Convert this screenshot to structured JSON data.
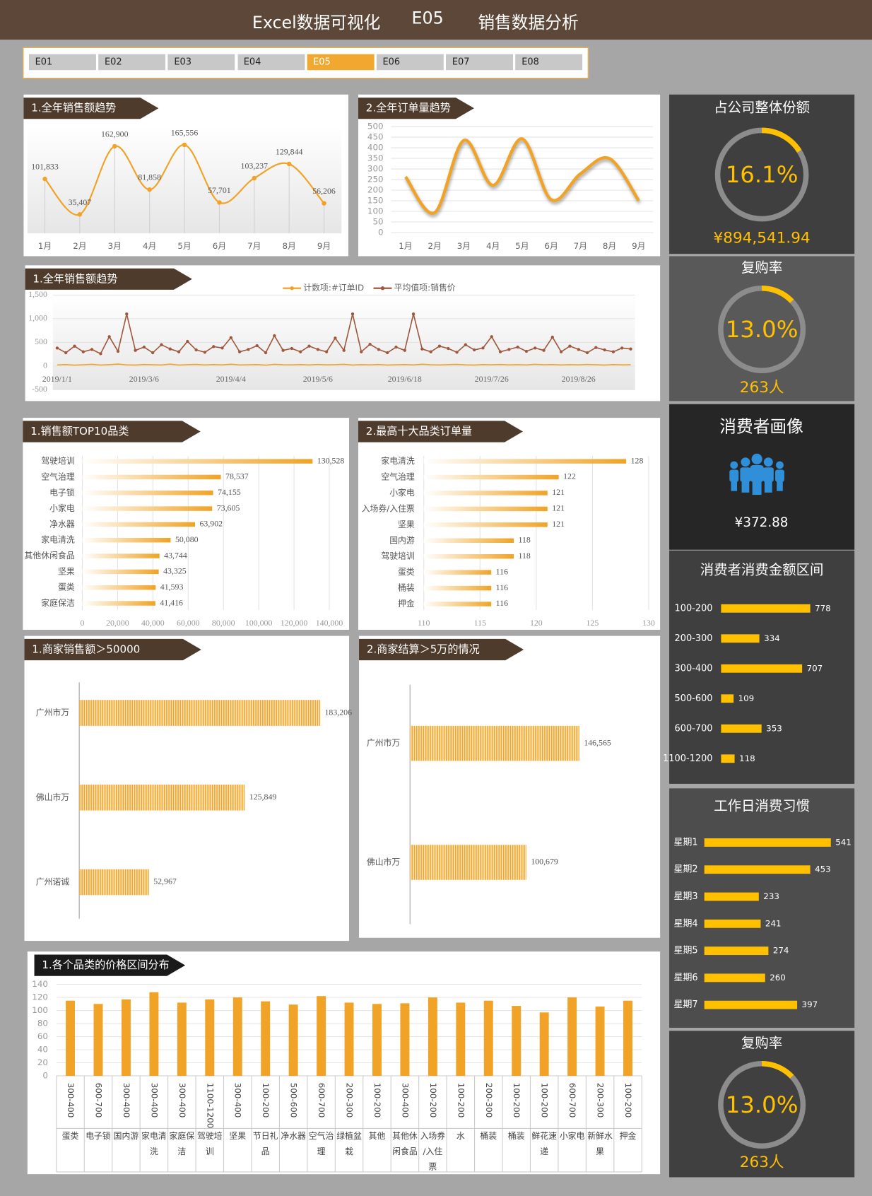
{
  "header": {
    "title": "Excel数据可视化",
    "code": "E05",
    "subtitle": "销售数据分析"
  },
  "tabs": [
    {
      "label": "E01",
      "active": false
    },
    {
      "label": "E02",
      "active": false
    },
    {
      "label": "E03",
      "active": false
    },
    {
      "label": "E04",
      "active": false
    },
    {
      "label": "E05",
      "active": true
    },
    {
      "label": "E06",
      "active": false
    },
    {
      "label": "E07",
      "active": false
    },
    {
      "label": "E08",
      "active": false
    }
  ],
  "persona": {
    "title": "消费者画像",
    "value": "¥372.88"
  },
  "chart_data": [
    {
      "type": "line",
      "title": "1.全年销售额趋势",
      "categories": [
        "1月",
        "2月",
        "3月",
        "4月",
        "5月",
        "6月",
        "7月",
        "8月",
        "9月"
      ],
      "values": [
        101833,
        35407,
        162900,
        81858,
        165556,
        57701,
        103237,
        129844,
        56206
      ],
      "value_labels": [
        "101,833",
        "35,407",
        "162,900",
        "81,858",
        "165,556",
        "57,701",
        "103,237",
        "129,844",
        "56,206"
      ],
      "color": "#f0a326",
      "smooth": true,
      "markers": true,
      "area": true
    },
    {
      "type": "line",
      "title": "2.全年订单量趋势",
      "categories": [
        "1月",
        "2月",
        "3月",
        "4月",
        "5月",
        "6月",
        "7月",
        "8月",
        "9月"
      ],
      "values": [
        263,
        94,
        435,
        223,
        442,
        155,
        277,
        349,
        151
      ],
      "color": "#f0a326",
      "smooth": true,
      "ylim": [
        0,
        500
      ],
      "yticks": [
        0,
        50,
        100,
        150,
        200,
        250,
        300,
        350,
        400,
        450,
        500
      ],
      "grid": true
    },
    {
      "type": "line",
      "title": "1.全年销售额趋势",
      "legend": "top",
      "grid": true,
      "area": true,
      "categories": [
        "2019/1/1",
        null,
        null,
        null,
        null,
        null,
        null,
        null,
        null,
        null,
        "2019/3/6",
        null,
        null,
        null,
        null,
        null,
        null,
        null,
        null,
        null,
        "2019/4/4",
        null,
        null,
        null,
        null,
        null,
        null,
        null,
        null,
        null,
        "2019/5/6",
        null,
        null,
        null,
        null,
        null,
        null,
        null,
        null,
        null,
        "2019/6/18",
        null,
        null,
        null,
        null,
        null,
        null,
        null,
        null,
        null,
        "2019/7/26",
        null,
        null,
        null,
        null,
        null,
        null,
        null,
        null,
        null,
        "2019/8/26",
        null,
        null,
        null,
        null,
        null,
        null
      ],
      "ylim": [
        -500,
        1500
      ],
      "yticks": [
        {
          "value": 1500,
          "label": "1,500"
        },
        {
          "value": 1000,
          "label": "1,000"
        },
        500,
        0,
        -500
      ],
      "series": [
        {
          "name": "计数项:#订单ID",
          "color": "#f0a326",
          "values": [
            22,
            30,
            18,
            25,
            35,
            20,
            28,
            40,
            24,
            19,
            31,
            26,
            22,
            38,
            20,
            27,
            33,
            21,
            29,
            24,
            36,
            22,
            25,
            30,
            18,
            34,
            26,
            23,
            29,
            21,
            32,
            24,
            27,
            35,
            20,
            28,
            23,
            31,
            19,
            26,
            30,
            22,
            37,
            25,
            21,
            28,
            33,
            24,
            20,
            29,
            26,
            31,
            23,
            27,
            22,
            34,
            25,
            30,
            21,
            28,
            24,
            32,
            26,
            20,
            29,
            23,
            27
          ]
        },
        {
          "name": "平均值项:销售价",
          "color": "#a0583c",
          "markers": true,
          "values": [
            380,
            280,
            420,
            300,
            350,
            260,
            620,
            310,
            1100,
            330,
            400,
            280,
            450,
            360,
            300,
            520,
            340,
            290,
            410,
            380,
            600,
            300,
            350,
            430,
            280,
            640,
            330,
            370,
            300,
            420,
            350,
            300,
            590,
            330,
            1100,
            300,
            460,
            350,
            280,
            400,
            330,
            1100,
            360,
            300,
            420,
            370,
            290,
            450,
            340,
            380,
            620,
            300,
            350,
            400,
            310,
            380,
            330,
            610,
            300,
            420,
            350,
            280,
            390,
            340,
            300,
            380,
            360
          ]
        }
      ]
    },
    {
      "type": "hbar",
      "title": "1.销售额TOP10品类",
      "categories": [
        "驾驶培训",
        "空气治理",
        "电子锁",
        "小家电",
        "净水器",
        "家电清洗",
        "其他休闲食品",
        "坚果",
        "蛋类",
        "家庭保洁"
      ],
      "values": [
        130528,
        78537,
        74155,
        73605,
        63902,
        50080,
        43744,
        43325,
        41593,
        41416
      ],
      "value_labels": [
        "130,528",
        "78,537",
        "74,155",
        "73,605",
        "63,902",
        "50,080",
        "43,744",
        "43,325",
        "41,593",
        "41,416"
      ],
      "color": "#f0a326",
      "xlim": [
        0,
        140000
      ],
      "xticks": [
        0,
        {
          "value": 20000,
          "label": "20,000"
        },
        {
          "value": 40000,
          "label": "40,000"
        },
        {
          "value": 60000,
          "label": "60,000"
        },
        {
          "value": 80000,
          "label": "80,000"
        },
        {
          "value": 100000,
          "label": "100,000"
        },
        {
          "value": 120000,
          "label": "120,000"
        },
        {
          "value": 140000,
          "label": "140,000"
        }
      ],
      "grid": true
    },
    {
      "type": "hbar",
      "title": "2.最高十大品类订单量",
      "categories": [
        "家电清洗",
        "空气治理",
        "小家电",
        "入场券/入住票",
        "坚果",
        "国内游",
        "驾驶培训",
        "蛋类",
        "桶装",
        "押金"
      ],
      "values": [
        128,
        122,
        121,
        121,
        121,
        118,
        118,
        116,
        116,
        116
      ],
      "color": "#f0a326",
      "xlim": [
        110,
        130
      ],
      "xticks": [
        110,
        115,
        120,
        125,
        130
      ],
      "grid": true
    },
    {
      "type": "hbar",
      "title": "1.商家销售额＞50000",
      "categories": [
        "广州市万",
        "佛山市万",
        "广州诺诚"
      ],
      "values": [
        183206,
        125849,
        52967
      ],
      "value_labels": [
        "183,206",
        "125,849",
        "52,967"
      ],
      "color": "#f0a326"
    },
    {
      "type": "hbar",
      "title": "2.商家结算＞5万的情况",
      "categories": [
        "广州市万",
        "佛山市万"
      ],
      "values": [
        146565,
        100679
      ],
      "value_labels": [
        "146,565",
        "100,679"
      ],
      "color": "#f0a326"
    },
    {
      "type": "bar",
      "title": "1.各个品类的价格区间分布",
      "categories": [
        "蛋类",
        "电子锁",
        "国内游",
        "家电清洗",
        "家庭保洁",
        "驾驶培训",
        "坚果",
        "节日礼品",
        "净水器",
        "空气治理",
        "绿植盆栽",
        "其他",
        "其他休闲食品",
        "入场券/入住票",
        "水",
        "桶装",
        "桶装",
        "鲜花速递",
        "小家电",
        "新鲜水果",
        "押金"
      ],
      "sub_categories": [
        "300-400",
        "600-700",
        "300-400",
        "300-400",
        "300-400",
        "1100-1200",
        "300-400",
        "100-200",
        "500-600",
        "600-700",
        "200-300",
        "100-200",
        "300-400",
        "100-200",
        "100-200",
        "200-300",
        "100-200",
        "100-200",
        "600-700",
        "200-300",
        "100-200"
      ],
      "values": [
        115,
        110,
        117,
        128,
        112,
        117,
        120,
        114,
        109,
        122,
        112,
        110,
        111,
        120,
        112,
        115,
        107,
        97,
        120,
        106,
        115
      ],
      "color": "#f0a326",
      "ylim": [
        0,
        140
      ],
      "yticks": [
        0,
        20,
        40,
        60,
        80,
        100,
        120,
        140
      ],
      "grid": true
    },
    {
      "type": "gauge",
      "title": "占公司整体份额",
      "value": 16.1,
      "value_label": "16.1%",
      "caption": "¥894,541.94",
      "color": "#ffc000"
    },
    {
      "type": "gauge",
      "title": "复购率",
      "value": 13.0,
      "value_label": "13.0%",
      "caption": "263人",
      "color": "#ffc000"
    },
    {
      "type": "hbar",
      "title": "消费者消费金额区间",
      "categories": [
        "100-200",
        "200-300",
        "300-400",
        "500-600",
        "600-700",
        "1100-1200"
      ],
      "values": [
        778,
        334,
        707,
        109,
        353,
        118
      ],
      "color": "#ffc000"
    },
    {
      "type": "hbar",
      "title": "工作日消费习惯",
      "categories": [
        "星期1",
        "星期2",
        "星期3",
        "星期4",
        "星期5",
        "星期6",
        "星期7"
      ],
      "values": [
        541,
        453,
        233,
        241,
        274,
        260,
        397
      ],
      "color": "#ffc000"
    },
    {
      "type": "gauge",
      "title": "复购率",
      "value": 13.0,
      "value_label": "13.0%",
      "caption": "263人",
      "color": "#ffc000"
    }
  ]
}
